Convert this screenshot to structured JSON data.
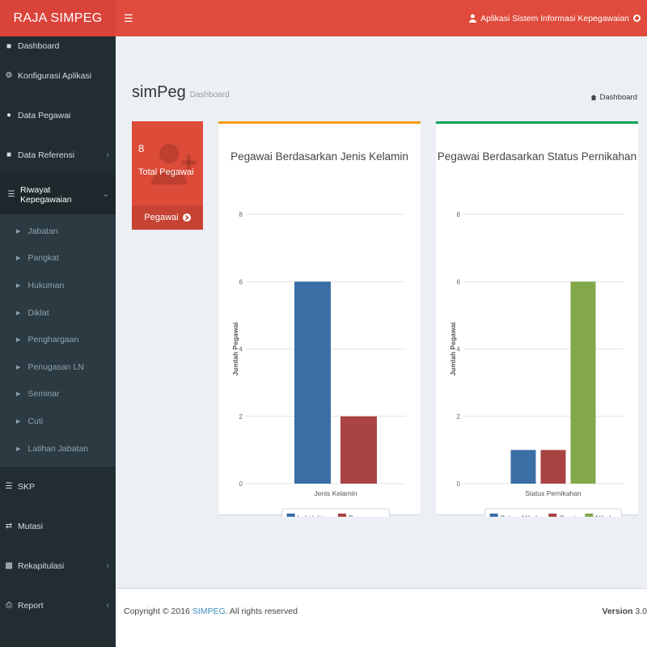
{
  "header": {
    "logo": "RAJA SIMPEG",
    "menu_icon": "bars-icon",
    "app_name": "Aplikasi Sistem Informasi Kepegawaian"
  },
  "sidebar": {
    "items": [
      {
        "label": "Dashboard",
        "icon": "dashboard-icon"
      },
      {
        "label": "Konfigurasi Aplikasi",
        "icon": "gear-icon"
      },
      {
        "label": "Data Pegawai",
        "icon": "users-icon"
      },
      {
        "label": "Data Referensi",
        "icon": "folder-icon",
        "caret": "‹"
      },
      {
        "label": "Riwayat Kepegawaian",
        "icon": "list-icon",
        "caret": "⌄"
      },
      {
        "label": "SKP",
        "icon": "list-icon"
      },
      {
        "label": "Mutasi",
        "icon": "exchange-icon"
      },
      {
        "label": "Rekapitulasi",
        "icon": "chart-icon",
        "caret": "‹"
      },
      {
        "label": "Report",
        "icon": "print-icon",
        "caret": "‹"
      }
    ],
    "submenu": [
      "Jabatan",
      "Pangkat",
      "Hukuman",
      "Diklat",
      "Penghargaan",
      "Penugasan LN",
      "Seminar",
      "Cuti",
      "Latihan Jabatan"
    ]
  },
  "page": {
    "title": "simPeg",
    "subtitle": "Dashboard",
    "breadcrumb": "Dashboard"
  },
  "stat_box": {
    "value": "8",
    "label": "Total Pegawai",
    "footer": "Pegawai",
    "color": "#dd4b39"
  },
  "chart_data": [
    {
      "type": "bar",
      "title": "Pegawai Berdasarkan Jenis Kelamin",
      "xlabel": "Jenis Kelamin",
      "ylabel": "Jumlah Pegawai",
      "ylim": [
        0,
        8
      ],
      "yticks": [
        "0",
        "2",
        "4",
        "6",
        "8"
      ],
      "series": [
        {
          "name": "Laki-laki",
          "value": 6,
          "color": "#3b6ea5"
        },
        {
          "name": "Perempuan",
          "value": 2,
          "color": "#a94442"
        }
      ],
      "legend": "bottom"
    },
    {
      "type": "bar",
      "title": "Pegawai Berdasarkan Status Pernikahan",
      "xlabel": "Status Pernikahan",
      "ylabel": "Jumlah Pegawai",
      "ylim": [
        0,
        8
      ],
      "yticks": [
        "0",
        "2",
        "4",
        "6",
        "8"
      ],
      "series": [
        {
          "name": "Belum Nikah",
          "value": 1,
          "color": "#3b6ea5"
        },
        {
          "name": "Cerai",
          "value": 1,
          "color": "#a94442"
        },
        {
          "name": "Nikah",
          "value": 6,
          "color": "#82a84a"
        }
      ],
      "legend": "bottom"
    }
  ],
  "footer": {
    "copyright_prefix": "Copyright © 2016",
    "brand": "SIMPEG",
    "copyright_suffix": ". All rights reserved",
    "version_label": "Version",
    "version_value": "3.0"
  }
}
